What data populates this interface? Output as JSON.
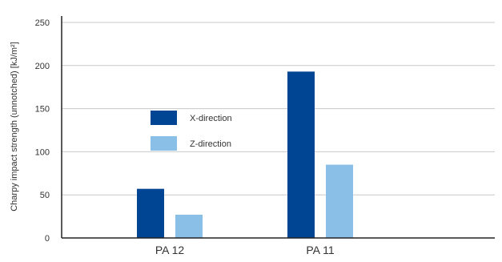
{
  "chart_data": {
    "type": "bar",
    "title": "",
    "xlabel": "",
    "ylabel": "Charpy impact strength (unnotched) [kJ/m²]",
    "categories": [
      "PA 12",
      "PA 11"
    ],
    "series": [
      {
        "name": "X-direction",
        "values": [
          57,
          193
        ],
        "color": "#004494"
      },
      {
        "name": "Z-direction",
        "values": [
          27,
          85
        ],
        "color": "#8abfe8"
      }
    ],
    "ylim": [
      0,
      250
    ],
    "yticks": [
      0,
      50,
      100,
      150,
      200,
      250
    ],
    "grid": true,
    "legend": "center-left"
  }
}
